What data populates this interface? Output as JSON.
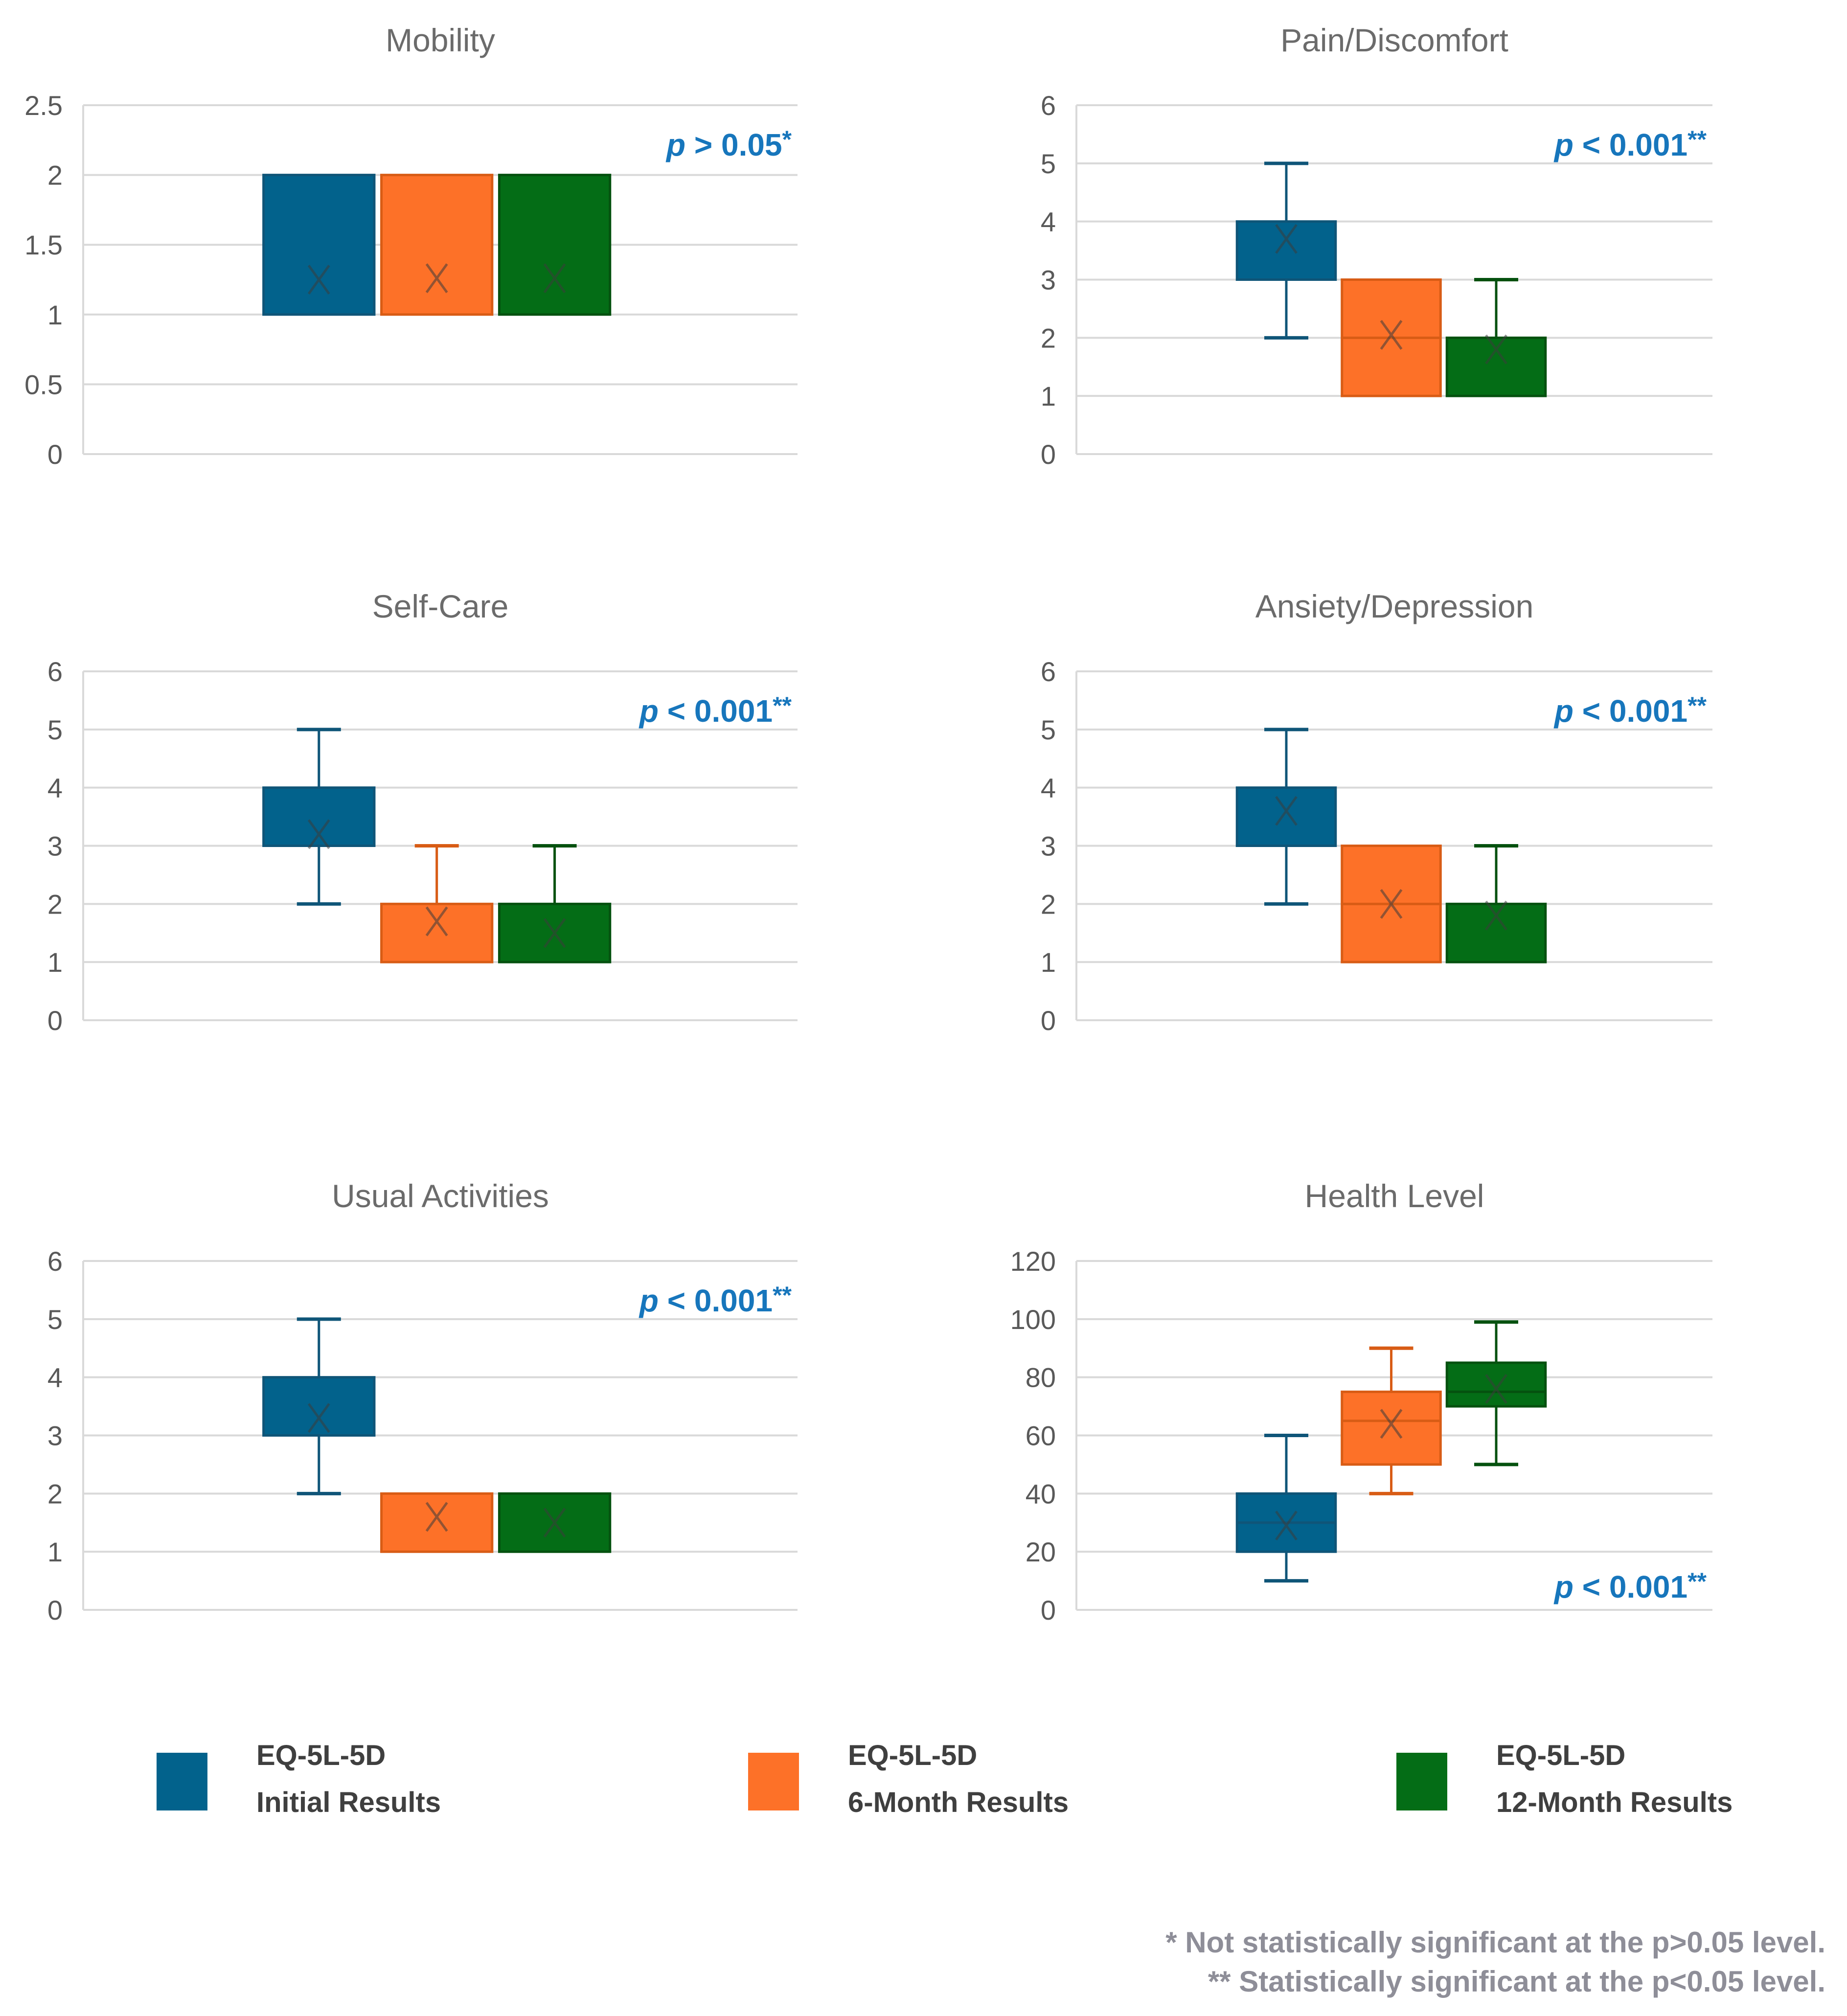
{
  "colors": {
    "initial_fill": "#02628C",
    "initial_line": "#0F5578",
    "month6_fill": "#FD7128",
    "month6_line": "#D85C15",
    "month12_fill": "#046D16",
    "month12_line": "#05510F",
    "mean_marker": "#3C3C3C",
    "p_label": "#1776BC",
    "title": "#6B6B6B",
    "tick": "#595959",
    "grid": "#D9D9D9",
    "legend_text": "#3F3F3F",
    "footnote": "#8E8E98"
  },
  "chart_data": [
    {
      "type": "boxplot",
      "title": "Mobility",
      "ylim": [
        0,
        2.5
      ],
      "ytick_step": 0.5,
      "grid": true,
      "p_label": {
        "italic_prefix": "p",
        "rest": " > 0.05",
        "stars": "*",
        "position": "top-right"
      },
      "series": [
        {
          "name": "EQ-5L-5D Initial Results",
          "color_key": "initial",
          "q1": 1,
          "q3": 2,
          "median": null,
          "mean": 1.25,
          "whisker_low": null,
          "whisker_high": null
        },
        {
          "name": "EQ-5L-5D 6-Month Results",
          "color_key": "month6",
          "q1": 1,
          "q3": 2,
          "median": null,
          "mean": 1.26,
          "whisker_low": null,
          "whisker_high": null
        },
        {
          "name": "EQ-5L-5D 12-Month Results",
          "color_key": "month12",
          "q1": 1,
          "q3": 2,
          "median": null,
          "mean": 1.26,
          "whisker_low": null,
          "whisker_high": null
        }
      ]
    },
    {
      "type": "boxplot",
      "title": "Pain/Discomfort",
      "ylim": [
        0,
        6
      ],
      "ytick_step": 1,
      "grid": true,
      "p_label": {
        "italic_prefix": "p",
        "rest": " < 0.001",
        "stars": "**",
        "position": "top-right"
      },
      "series": [
        {
          "name": "EQ-5L-5D Initial Results",
          "color_key": "initial",
          "q1": 3,
          "q3": 4,
          "median": null,
          "mean": 3.7,
          "whisker_low": 2,
          "whisker_high": 5
        },
        {
          "name": "EQ-5L-5D 6-Month Results",
          "color_key": "month6",
          "q1": 1,
          "q3": 3,
          "median": 2,
          "mean": 2.05,
          "whisker_low": null,
          "whisker_high": null
        },
        {
          "name": "EQ-5L-5D 12-Month Results",
          "color_key": "month12",
          "q1": 1,
          "q3": 2,
          "median": null,
          "mean": 1.8,
          "whisker_low": null,
          "whisker_high": 3
        }
      ]
    },
    {
      "type": "boxplot",
      "title": "Self-Care",
      "ylim": [
        0,
        6
      ],
      "ytick_step": 1,
      "grid": true,
      "p_label": {
        "italic_prefix": "p",
        "rest": " < 0.001",
        "stars": "**",
        "position": "top-right"
      },
      "series": [
        {
          "name": "EQ-5L-5D Initial Results",
          "color_key": "initial",
          "q1": 3,
          "q3": 4,
          "median": null,
          "mean": 3.2,
          "whisker_low": 2,
          "whisker_high": 5
        },
        {
          "name": "EQ-5L-5D 6-Month Results",
          "color_key": "month6",
          "q1": 1,
          "q3": 2,
          "median": null,
          "mean": 1.7,
          "whisker_low": null,
          "whisker_high": 3
        },
        {
          "name": "EQ-5L-5D 12-Month Results",
          "color_key": "month12",
          "q1": 1,
          "q3": 2,
          "median": null,
          "mean": 1.5,
          "whisker_low": null,
          "whisker_high": 3
        }
      ]
    },
    {
      "type": "boxplot",
      "title": "Ansiety/Depression",
      "ylim": [
        0,
        6
      ],
      "ytick_step": 1,
      "grid": true,
      "p_label": {
        "italic_prefix": "p",
        "rest": " < 0.001",
        "stars": "**",
        "position": "top-right"
      },
      "series": [
        {
          "name": "EQ-5L-5D Initial Results",
          "color_key": "initial",
          "q1": 3,
          "q3": 4,
          "median": null,
          "mean": 3.6,
          "whisker_low": 2,
          "whisker_high": 5
        },
        {
          "name": "EQ-5L-5D 6-Month Results",
          "color_key": "month6",
          "q1": 1,
          "q3": 3,
          "median": 2,
          "mean": 2.0,
          "whisker_low": null,
          "whisker_high": null
        },
        {
          "name": "EQ-5L-5D 12-Month Results",
          "color_key": "month12",
          "q1": 1,
          "q3": 2,
          "median": null,
          "mean": 1.8,
          "whisker_low": null,
          "whisker_high": 3
        }
      ]
    },
    {
      "type": "boxplot",
      "title": "Usual Activities",
      "ylim": [
        0,
        6
      ],
      "ytick_step": 1,
      "grid": true,
      "p_label": {
        "italic_prefix": "p",
        "rest": " < 0.001",
        "stars": "**",
        "position": "top-right"
      },
      "series": [
        {
          "name": "EQ-5L-5D Initial Results",
          "color_key": "initial",
          "q1": 3,
          "q3": 4,
          "median": null,
          "mean": 3.3,
          "whisker_low": 2,
          "whisker_high": 5
        },
        {
          "name": "EQ-5L-5D 6-Month Results",
          "color_key": "month6",
          "q1": 1,
          "q3": 2,
          "median": null,
          "mean": 1.6,
          "whisker_low": null,
          "whisker_high": null
        },
        {
          "name": "EQ-5L-5D 12-Month Results",
          "color_key": "month12",
          "q1": 1,
          "q3": 2,
          "median": null,
          "mean": 1.5,
          "whisker_low": null,
          "whisker_high": null
        }
      ]
    },
    {
      "type": "boxplot",
      "title": "Health Level",
      "ylim": [
        0,
        120
      ],
      "ytick_step": 20,
      "grid": true,
      "p_label": {
        "italic_prefix": "p",
        "rest": " < 0.001",
        "stars": "**",
        "position": "bottom-right"
      },
      "series": [
        {
          "name": "EQ-5L-5D Initial Results",
          "color_key": "initial",
          "q1": 20,
          "q3": 40,
          "median": 30,
          "mean": 29,
          "whisker_low": 10,
          "whisker_high": 60
        },
        {
          "name": "EQ-5L-5D 6-Month Results",
          "color_key": "month6",
          "q1": 50,
          "q3": 75,
          "median": 65,
          "mean": 64,
          "whisker_low": 40,
          "whisker_high": 90
        },
        {
          "name": "EQ-5L-5D 12-Month Results",
          "color_key": "month12",
          "q1": 70,
          "q3": 85,
          "median": 75,
          "mean": 76,
          "whisker_low": 50,
          "whisker_high": 99
        }
      ]
    }
  ],
  "legend": {
    "items": [
      {
        "line1": "EQ-5L-5D",
        "line2": "Initial Results",
        "color_key": "initial_fill"
      },
      {
        "line1": "EQ-5L-5D",
        "line2": "6-Month Results",
        "color_key": "month6_fill"
      },
      {
        "line1": "EQ-5L-5D",
        "line2": "12-Month Results",
        "color_key": "month12_fill"
      }
    ]
  },
  "footnotes": {
    "line1": "* Not statistically significant at the p>0.05 level.",
    "line2": "** Statistically significant at the p<0.05 level."
  }
}
